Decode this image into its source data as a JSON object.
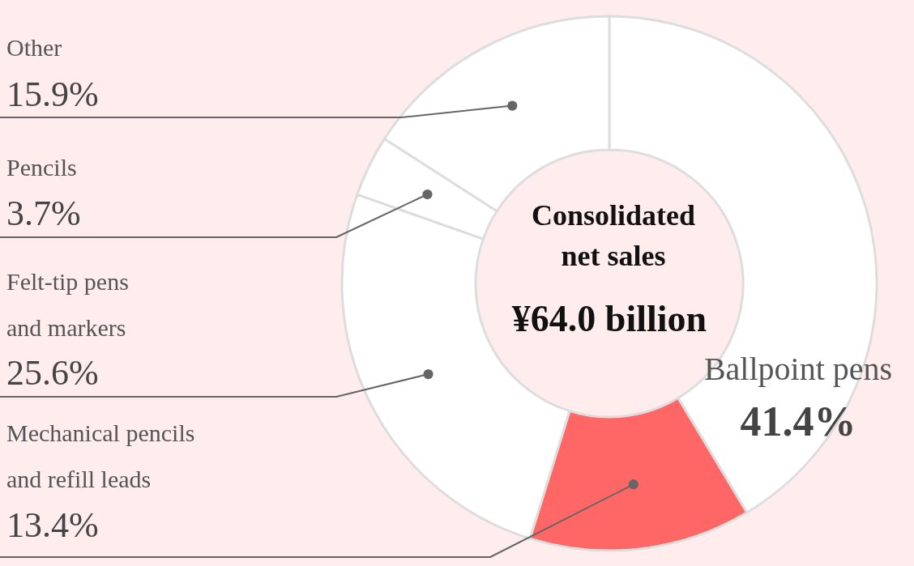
{
  "chart_data": {
    "type": "donut",
    "title": "Consolidated\nnet sales",
    "categories": [
      "Ballpoint pens",
      "Mechanical pencils\nand refill leads",
      "Felt-tip pens\nand markers",
      "Pencils",
      "Other"
    ],
    "values": [
      41.4,
      13.4,
      25.6,
      3.7,
      15.9
    ],
    "value_labels": [
      "41.4%",
      "13.4%",
      "25.6%",
      "3.7%",
      "15.9%"
    ],
    "colors": [
      "#ffffff",
      "#ff6666",
      "#ffffff",
      "#ffffff",
      "#ffffff"
    ],
    "annotations": [
      "¥64.0 billion"
    ]
  }
}
